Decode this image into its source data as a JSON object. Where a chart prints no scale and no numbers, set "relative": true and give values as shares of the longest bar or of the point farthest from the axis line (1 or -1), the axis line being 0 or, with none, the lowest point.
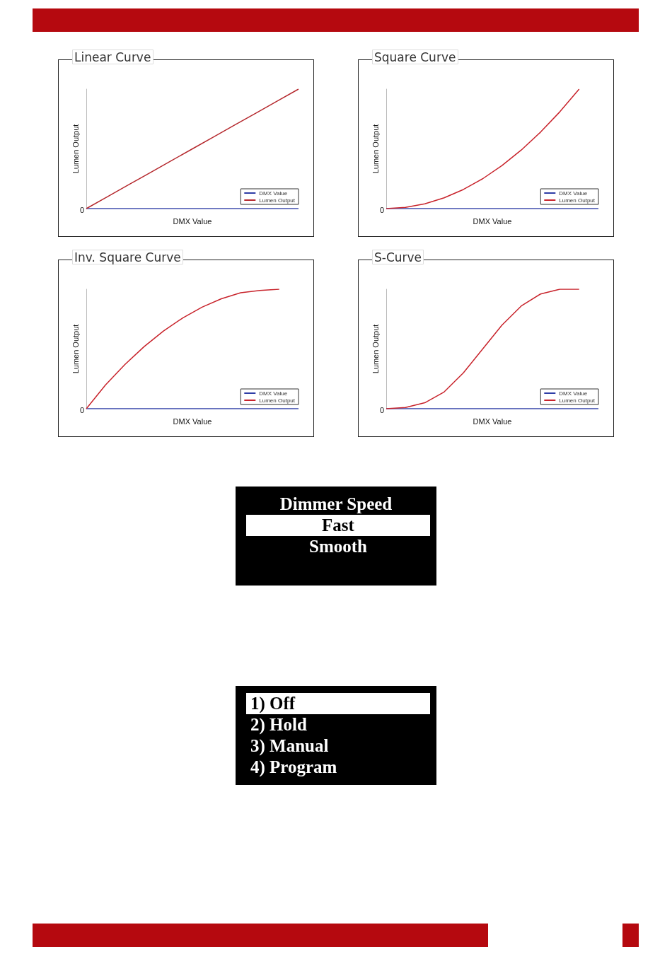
{
  "chart_data": [
    {
      "type": "line",
      "title": "Linear Curve",
      "xlabel": "DMX Value",
      "ylabel": "Lumen Output",
      "relative": true,
      "legend": "bottom right",
      "grid": false,
      "marker": "none",
      "annotations": [
        "0"
      ],
      "categories": [
        null,
        null,
        null,
        null,
        null,
        null,
        null,
        null,
        null,
        null,
        null
      ],
      "series": [
        {
          "name": "DMX Value",
          "color": "#2e3da6",
          "values": [
            0,
            0,
            0,
            0,
            0,
            0,
            0,
            0,
            0,
            0,
            0
          ]
        },
        {
          "name": "Lumen Output",
          "color": "#b5282d",
          "values": [
            0,
            0.1,
            0.2,
            0.3,
            0.4,
            0.5,
            0.6,
            0.7,
            0.8,
            0.9,
            1
          ]
        }
      ]
    },
    {
      "type": "line",
      "title": "Square Curve",
      "xlabel": "DMX Value",
      "ylabel": "Lumen Output",
      "relative": true,
      "legend": "bottom right",
      "grid": false,
      "marker": "none",
      "annotations": [
        "0"
      ],
      "categories": [
        null,
        null,
        null,
        null,
        null,
        null,
        null,
        null,
        null,
        null,
        null,
        null
      ],
      "series": [
        {
          "name": "DMX Value",
          "color": "#2e3da6",
          "values": [
            0,
            0,
            0,
            0,
            0,
            0,
            0,
            0,
            0,
            0,
            0,
            0
          ]
        },
        {
          "name": "Lumen Output",
          "color": "#c8232b",
          "values": [
            0,
            0.01,
            0.04,
            0.09,
            0.16,
            0.25,
            0.36,
            0.49,
            0.64,
            0.81,
            1,
            null
          ]
        }
      ]
    },
    {
      "type": "line",
      "title": "Inv. Square Curve",
      "xlabel": "DMX Value",
      "ylabel": "Lumen Output",
      "relative": true,
      "legend": "bottom right",
      "grid": false,
      "marker": "none",
      "annotations": [
        "0"
      ],
      "categories": [
        null,
        null,
        null,
        null,
        null,
        null,
        null,
        null,
        null,
        null,
        null,
        null
      ],
      "series": [
        {
          "name": "DMX Value",
          "color": "#2e3da6",
          "values": [
            0,
            0,
            0,
            0,
            0,
            0,
            0,
            0,
            0,
            0,
            0,
            0
          ]
        },
        {
          "name": "Lumen Output",
          "color": "#c8232b",
          "values": [
            0,
            0.2,
            0.37,
            0.52,
            0.65,
            0.76,
            0.85,
            0.92,
            0.97,
            0.99,
            1,
            null
          ]
        }
      ]
    },
    {
      "type": "line",
      "title": "S-Curve",
      "xlabel": "DMX Value",
      "ylabel": "Lumen Output",
      "relative": true,
      "legend": "bottom right",
      "grid": false,
      "marker": "none",
      "annotations": [
        "0"
      ],
      "categories": [
        null,
        null,
        null,
        null,
        null,
        null,
        null,
        null,
        null,
        null,
        null,
        null
      ],
      "series": [
        {
          "name": "DMX Value",
          "color": "#2e3da6",
          "values": [
            0,
            0,
            0,
            0,
            0,
            0,
            0,
            0,
            0,
            0,
            0,
            0
          ]
        },
        {
          "name": "Lumen Output",
          "color": "#c8232b",
          "values": [
            0,
            0.01,
            0.05,
            0.14,
            0.3,
            0.5,
            0.7,
            0.86,
            0.96,
            1,
            1,
            null
          ]
        }
      ]
    },
    {
      "type": "other",
      "title": "Dimmer Speed",
      "annotations": [
        "Fast",
        "Smooth"
      ]
    },
    {
      "type": "other",
      "annotations": [
        "1) Off",
        "2) Hold",
        "3) Manual",
        "4) Program"
      ]
    }
  ]
}
